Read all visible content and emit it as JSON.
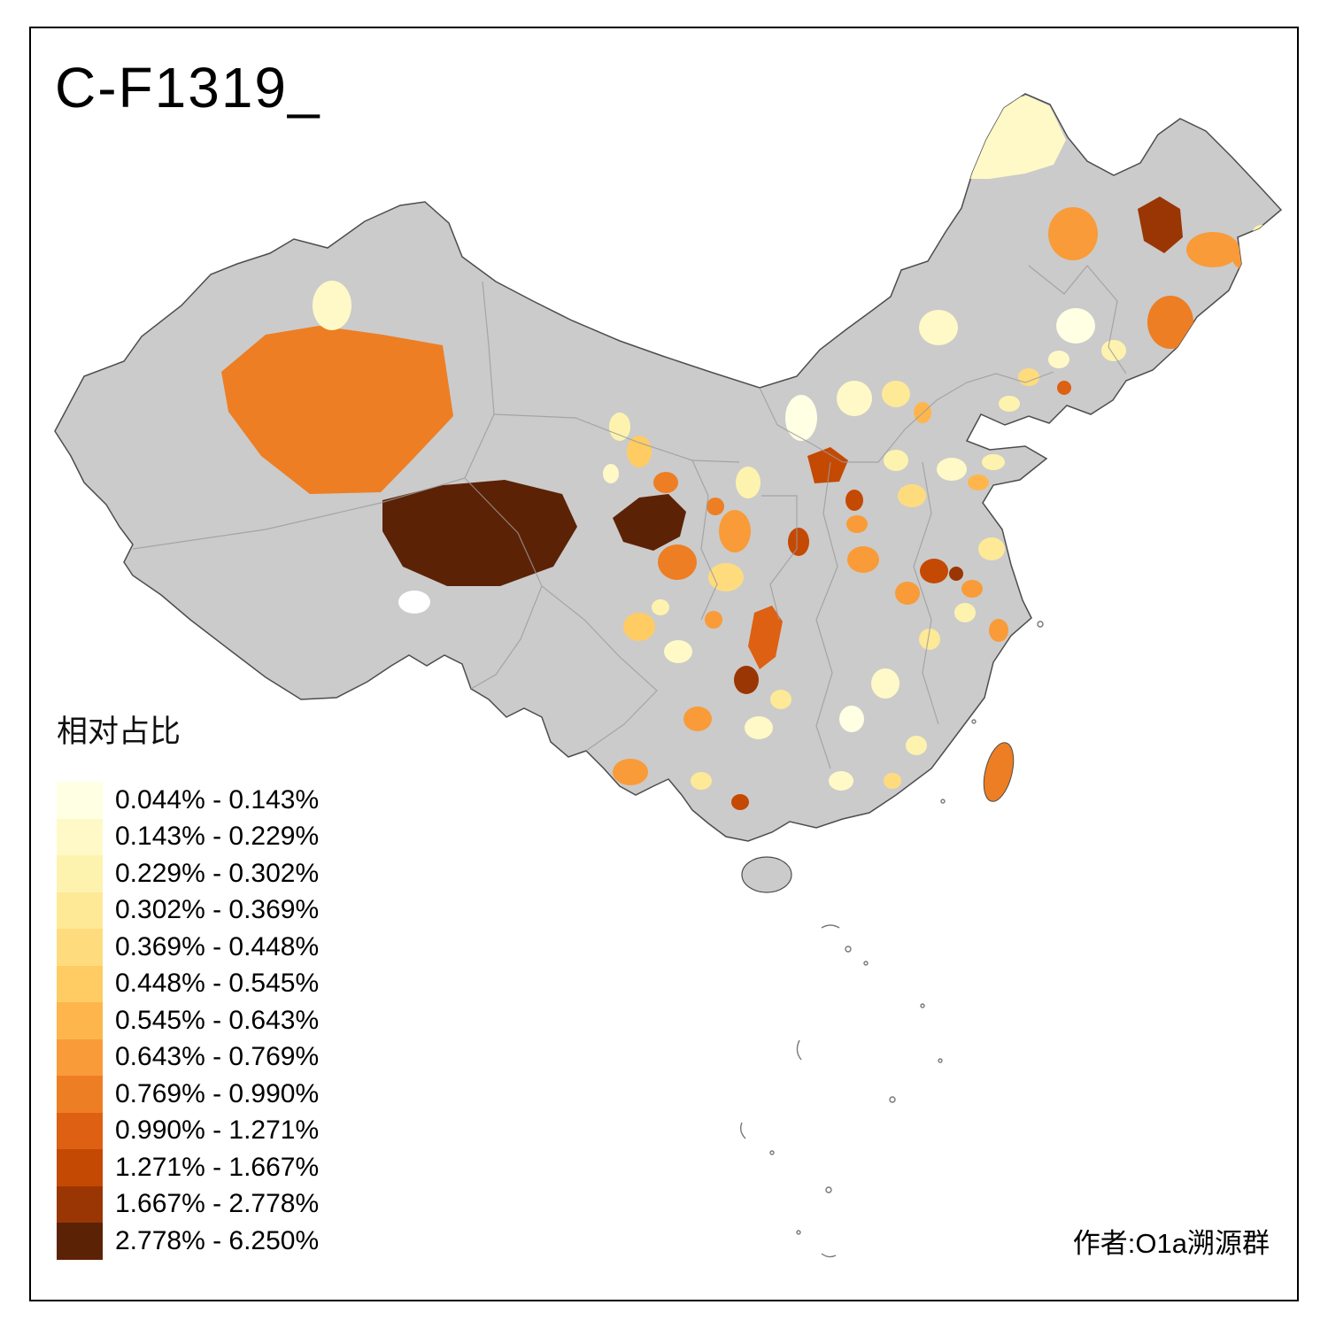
{
  "page": {
    "title": "C-F1319_",
    "author_credit": "作者:O1a溯源群",
    "background_color": "#ffffff",
    "frame_color": "#000000"
  },
  "legend": {
    "title": "相对占比",
    "bins": [
      {
        "label": "0.044% - 0.143%",
        "color": "#FFFFE3"
      },
      {
        "label": "0.143% - 0.229%",
        "color": "#FFF9C7"
      },
      {
        "label": "0.229% - 0.302%",
        "color": "#FEF3AE"
      },
      {
        "label": "0.302% - 0.369%",
        "color": "#FEE997"
      },
      {
        "label": "0.369% - 0.448%",
        "color": "#FEDC7E"
      },
      {
        "label": "0.448% - 0.545%",
        "color": "#FECC63"
      },
      {
        "label": "0.545% - 0.643%",
        "color": "#FEB64C"
      },
      {
        "label": "0.643% - 0.769%",
        "color": "#F99B38"
      },
      {
        "label": "0.769% - 0.990%",
        "color": "#EE7E23"
      },
      {
        "label": "0.990% - 1.271%",
        "color": "#DD6013"
      },
      {
        "label": "1.271% - 1.667%",
        "color": "#C44903"
      },
      {
        "label": "1.667% - 2.778%",
        "color": "#9A3603"
      },
      {
        "label": "2.778% - 6.250%",
        "color": "#5C2205"
      }
    ]
  },
  "map": {
    "no_data_color": "#CBCBCB",
    "outline_color": "#4D4D4D",
    "province_border_color": "#9B9B9B",
    "white_region_color": "#FFFFFF",
    "sea_feature_color": "#777777"
  }
}
